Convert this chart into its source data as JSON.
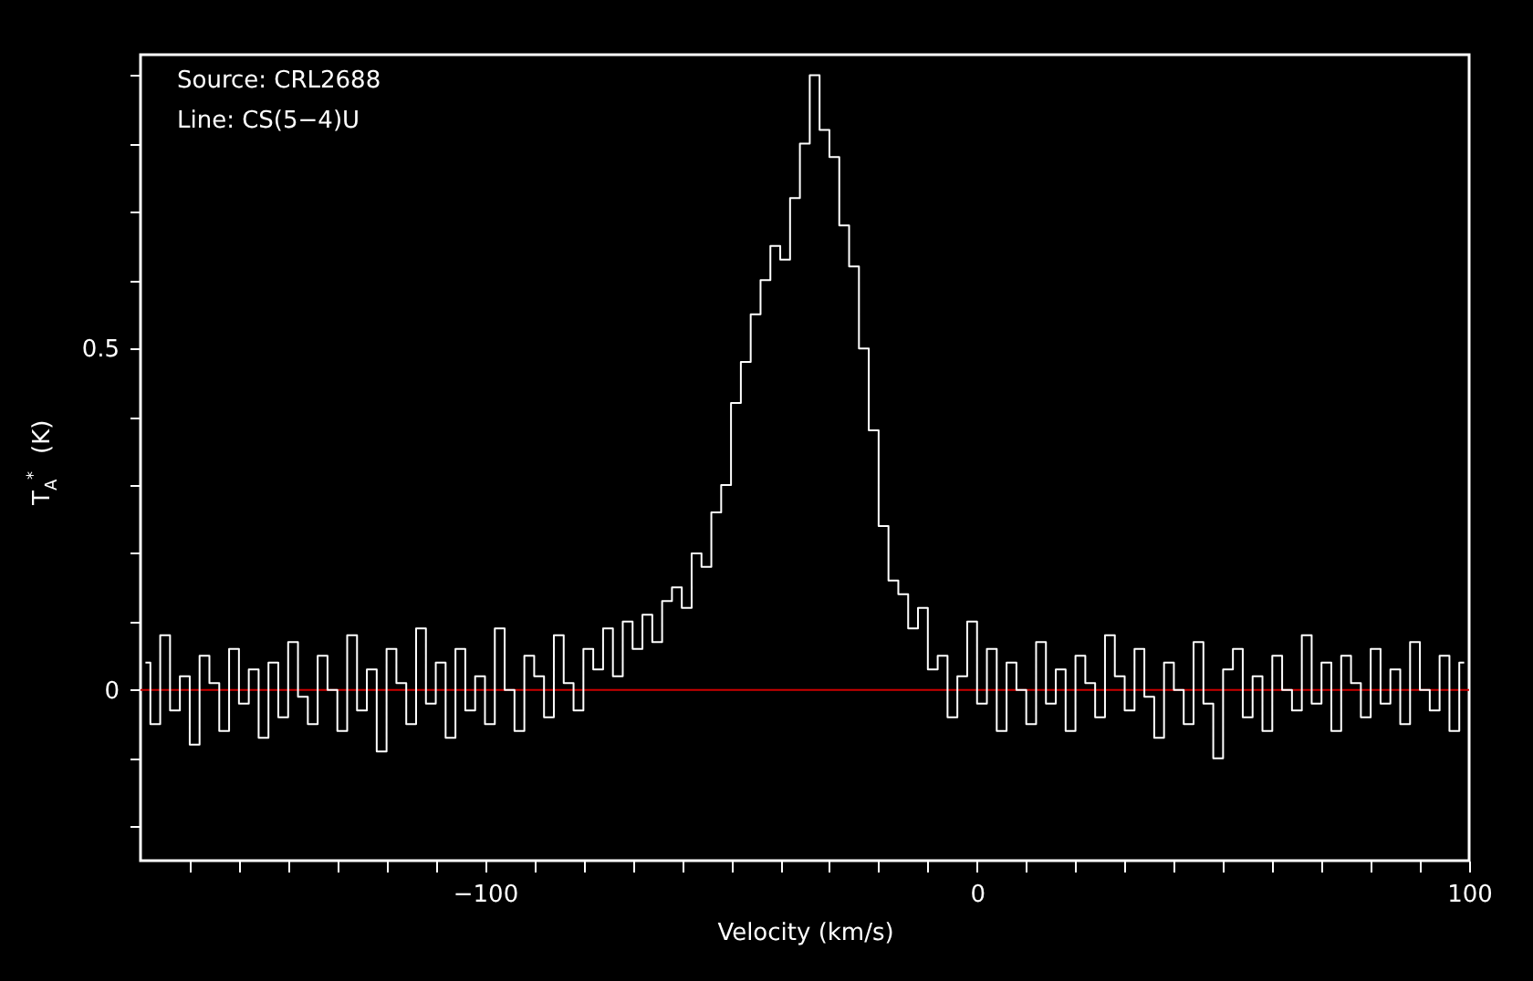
{
  "chart_data": {
    "type": "step",
    "xlabel": "Velocity (km/s)",
    "ylabel": "T$_{A}$$^{*}$ (K)",
    "annotations": [
      "Source:  CRL2688",
      "Line:    CS(5−4)U"
    ],
    "xlim": [
      -170,
      100
    ],
    "ylim": [
      -0.25,
      0.93
    ],
    "xticks": [
      {
        "value": -160,
        "label": null
      },
      {
        "value": -150,
        "label": null
      },
      {
        "value": -140,
        "label": null
      },
      {
        "value": -130,
        "label": null
      },
      {
        "value": -120,
        "label": null
      },
      {
        "value": -110,
        "label": null
      },
      {
        "value": -100,
        "label": "−100"
      },
      {
        "value": -90,
        "label": null
      },
      {
        "value": -80,
        "label": null
      },
      {
        "value": -70,
        "label": null
      },
      {
        "value": -60,
        "label": null
      },
      {
        "value": -50,
        "label": null
      },
      {
        "value": -40,
        "label": null
      },
      {
        "value": -30,
        "label": null
      },
      {
        "value": -20,
        "label": null
      },
      {
        "value": -10,
        "label": null
      },
      0,
      {
        "value": 10,
        "label": null
      },
      {
        "value": 20,
        "label": null
      },
      {
        "value": 30,
        "label": null
      },
      {
        "value": 40,
        "label": null
      },
      {
        "value": 50,
        "label": null
      },
      {
        "value": 60,
        "label": null
      },
      {
        "value": 70,
        "label": null
      },
      {
        "value": 80,
        "label": null
      },
      {
        "value": 90,
        "label": null
      },
      100
    ],
    "yticks": [
      {
        "value": -0.2,
        "label": null
      },
      {
        "value": -0.1,
        "label": null
      },
      0,
      {
        "value": 0.1,
        "label": null
      },
      {
        "value": 0.2,
        "label": null
      },
      {
        "value": 0.3,
        "label": null
      },
      {
        "value": 0.4,
        "label": null
      },
      0.5,
      {
        "value": 0.6,
        "label": null
      },
      {
        "value": 0.7,
        "label": null
      },
      {
        "value": 0.8,
        "label": null
      },
      {
        "value": 0.9,
        "label": null
      }
    ],
    "ref_lines": [
      {
        "axis": "y",
        "value": 0,
        "color": "#cc0000"
      }
    ],
    "grid": false,
    "series": [
      {
        "color": "#ffffff",
        "x": [
          -169,
          -167,
          -165,
          -163,
          -161,
          -159,
          -157,
          -155,
          -153,
          -151,
          -149,
          -147,
          -145,
          -143,
          -141,
          -139,
          -137,
          -135,
          -133,
          -131,
          -129,
          -127,
          -125,
          -123,
          -121,
          -119,
          -117,
          -115,
          -113,
          -111,
          -109,
          -107,
          -105,
          -103,
          -101,
          -99,
          -97,
          -95,
          -93,
          -91,
          -89,
          -87,
          -85,
          -83,
          -81,
          -79,
          -77,
          -75,
          -73,
          -71,
          -69,
          -67,
          -65,
          -63,
          -61,
          -59,
          -57,
          -55,
          -53,
          -51,
          -49,
          -47,
          -45,
          -43,
          -41,
          -39,
          -37,
          -35,
          -33,
          -31,
          -29,
          -27,
          -25,
          -23,
          -21,
          -19,
          -17,
          -15,
          -13,
          -11,
          -9,
          -7,
          -5,
          -3,
          -1,
          1,
          3,
          5,
          7,
          9,
          11,
          13,
          15,
          17,
          19,
          21,
          23,
          25,
          27,
          29,
          31,
          33,
          35,
          37,
          39,
          41,
          43,
          45,
          47,
          49,
          51,
          53,
          55,
          57,
          59,
          61,
          63,
          65,
          67,
          69,
          71,
          73,
          75,
          77,
          79,
          81,
          83,
          85,
          87,
          89,
          91,
          93,
          95,
          97,
          99
        ],
        "values": [
          0.04,
          -0.05,
          0.08,
          -0.03,
          0.02,
          -0.08,
          0.05,
          0.01,
          -0.06,
          0.06,
          -0.02,
          0.03,
          -0.07,
          0.04,
          -0.04,
          0.07,
          -0.01,
          -0.05,
          0.05,
          0.0,
          -0.06,
          0.08,
          -0.03,
          0.03,
          -0.09,
          0.06,
          0.01,
          -0.05,
          0.09,
          -0.02,
          0.04,
          -0.07,
          0.06,
          -0.03,
          0.02,
          -0.05,
          0.09,
          0.0,
          -0.06,
          0.05,
          0.02,
          -0.04,
          0.08,
          0.01,
          -0.03,
          0.06,
          0.03,
          0.09,
          0.02,
          0.1,
          0.06,
          0.11,
          0.07,
          0.13,
          0.15,
          0.12,
          0.2,
          0.18,
          0.26,
          0.3,
          0.42,
          0.48,
          0.55,
          0.6,
          0.65,
          0.63,
          0.72,
          0.8,
          0.9,
          0.82,
          0.78,
          0.68,
          0.62,
          0.5,
          0.38,
          0.24,
          0.16,
          0.14,
          0.09,
          0.12,
          0.03,
          0.05,
          -0.04,
          0.02,
          0.1,
          -0.02,
          0.06,
          -0.06,
          0.04,
          0.0,
          -0.05,
          0.07,
          -0.02,
          0.03,
          -0.06,
          0.05,
          0.01,
          -0.04,
          0.08,
          0.02,
          -0.03,
          0.06,
          -0.01,
          -0.07,
          0.04,
          0.0,
          -0.05,
          0.07,
          -0.02,
          -0.1,
          0.03,
          0.06,
          -0.04,
          0.02,
          -0.06,
          0.05,
          0.0,
          -0.03,
          0.08,
          -0.02,
          0.04,
          -0.06,
          0.05,
          0.01,
          -0.04,
          0.06,
          -0.02,
          0.03,
          -0.05,
          0.07,
          0.0,
          -0.03,
          0.05,
          -0.06,
          0.04
        ]
      }
    ]
  }
}
